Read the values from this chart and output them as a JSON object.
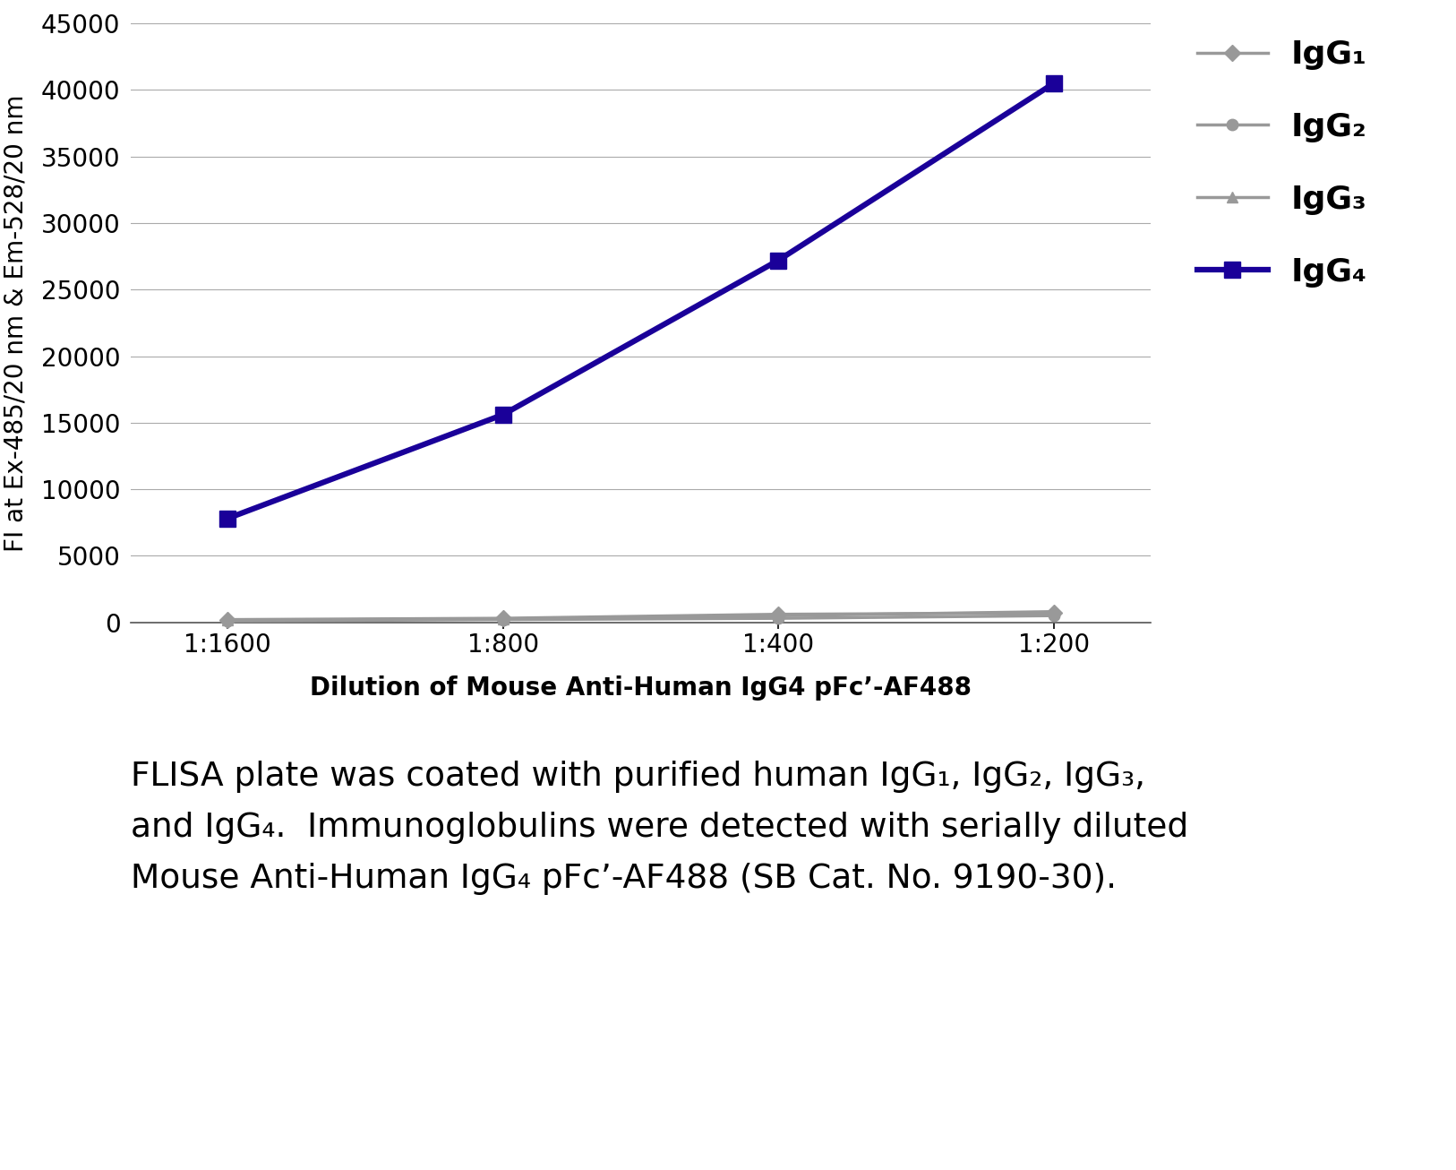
{
  "x_labels": [
    "1:1600",
    "1:800",
    "1:400",
    "1:200"
  ],
  "x_positions": [
    0,
    1,
    2,
    3
  ],
  "IgG1": [
    200,
    300,
    600,
    700
  ],
  "IgG2": [
    100,
    200,
    300,
    500
  ],
  "IgG3": [
    150,
    250,
    500,
    800
  ],
  "IgG4": [
    7800,
    15600,
    27200,
    40500
  ],
  "IgG1_color": "#999999",
  "IgG2_color": "#999999",
  "IgG3_color": "#999999",
  "IgG4_color": "#1a0099",
  "ylim": [
    0,
    45000
  ],
  "yticks": [
    0,
    5000,
    10000,
    15000,
    20000,
    25000,
    30000,
    35000,
    40000,
    45000
  ],
  "ylabel": "FI at Ex-485/20 nm & Em-528/20 nm",
  "xlabel": "Dilution of Mouse Anti-Human IgG4 pFc’-AF488",
  "background_color": "#ffffff",
  "grid_color": "#aaaaaa",
  "annot_line1": "FLISA plate was coated with purified human IgG₁, IgG₂, IgG₃,",
  "annot_line2": "and IgG₄.  Immunoglobulins were detected with serially diluted",
  "annot_line3": "Mouse Anti-Human IgG₄ pFc’-AF488 (SB Cat. No. 9190-30)."
}
